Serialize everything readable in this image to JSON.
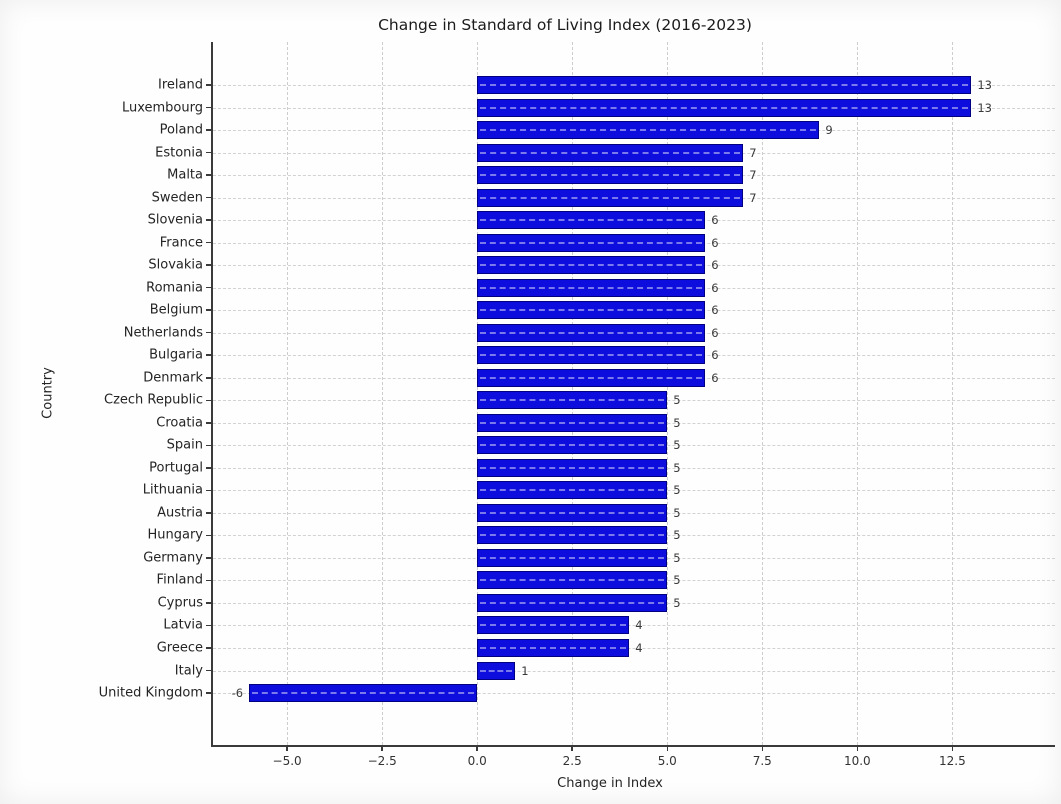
{
  "chart_data": {
    "type": "bar",
    "orientation": "horizontal",
    "title": "Change in Standard of Living Index (2016-2023)",
    "xlabel": "Change in Index",
    "ylabel": "Country",
    "categories": [
      "Ireland",
      "Luxembourg",
      "Poland",
      "Estonia",
      "Malta",
      "Sweden",
      "Slovenia",
      "France",
      "Slovakia",
      "Romania",
      "Belgium",
      "Netherlands",
      "Bulgaria",
      "Denmark",
      "Czech Republic",
      "Croatia",
      "Spain",
      "Portugal",
      "Lithuania",
      "Austria",
      "Hungary",
      "Germany",
      "Finland",
      "Cyprus",
      "Latvia",
      "Greece",
      "Italy",
      "United Kingdom"
    ],
    "values": [
      13,
      13,
      9,
      7,
      7,
      7,
      6,
      6,
      6,
      6,
      6,
      6,
      6,
      6,
      5,
      5,
      5,
      5,
      5,
      5,
      5,
      5,
      5,
      5,
      4,
      4,
      1,
      -6
    ],
    "bar_labels": [
      "13",
      "13",
      "9",
      "7",
      "7",
      "7",
      "6",
      "6",
      "6",
      "6",
      "6",
      "6",
      "6",
      "6",
      "5",
      "5",
      "5",
      "5",
      "5",
      "5",
      "5",
      "5",
      "5",
      "5",
      "4",
      "4",
      "1",
      "-6"
    ],
    "x_ticks": [
      {
        "value": -5,
        "label": "−5.0"
      },
      {
        "value": -2.5,
        "label": "−2.5"
      },
      {
        "value": 0,
        "label": "0.0"
      },
      {
        "value": 2.5,
        "label": "2.5"
      },
      {
        "value": 5,
        "label": "5.0"
      },
      {
        "value": 7.5,
        "label": "7.5"
      },
      {
        "value": 10,
        "label": "10.0"
      },
      {
        "value": 12.5,
        "label": "12.5"
      }
    ],
    "xlim": [
      -6.95,
      15.2
    ],
    "grid": "dashed-both-axes",
    "legend": "none",
    "bar_color": "#0d0ddd",
    "bar_edge_color": "#000080",
    "text_color": "#242424",
    "gridline_color": "#cdcdcd"
  }
}
